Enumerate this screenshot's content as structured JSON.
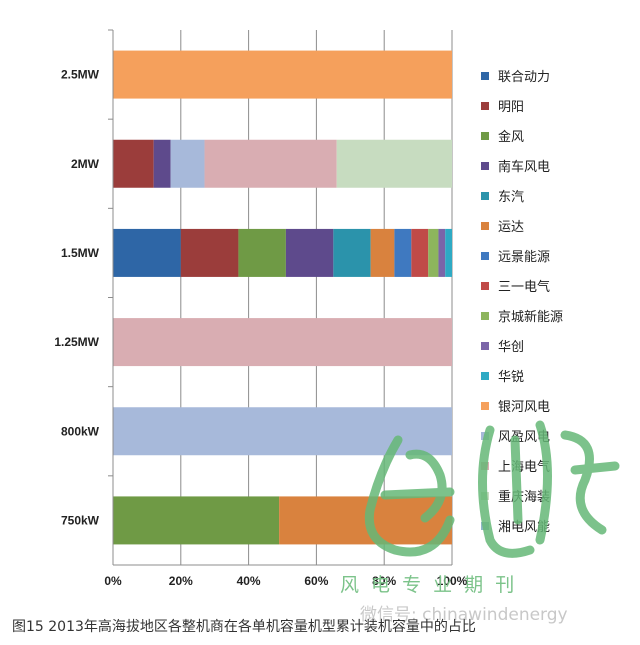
{
  "chart_data": {
    "type": "bar",
    "orientation": "horizontal",
    "stacked": true,
    "percent": true,
    "categories": [
      "2.5MW",
      "2MW",
      "1.5MW",
      "1.25MW",
      "800kW",
      "750kW"
    ],
    "x_ticks": [
      "0%",
      "20%",
      "40%",
      "60%",
      "80%",
      "100%"
    ],
    "xlim": [
      0,
      100
    ],
    "legend_position": "right",
    "series": [
      {
        "name": "联合动力",
        "color": "#2e66a6",
        "values": [
          0,
          0,
          20,
          0,
          0,
          0
        ]
      },
      {
        "name": "明阳",
        "color": "#9b3d3b",
        "values": [
          0,
          12,
          17,
          0,
          0,
          0
        ]
      },
      {
        "name": "金风",
        "color": "#6f9a45",
        "values": [
          0,
          0,
          14,
          0,
          0,
          49
        ]
      },
      {
        "name": "南车风电",
        "color": "#5e4a8c",
        "values": [
          0,
          5,
          14,
          0,
          0,
          0
        ]
      },
      {
        "name": "东汽",
        "color": "#2b93ab",
        "values": [
          0,
          0,
          11,
          0,
          0,
          0
        ]
      },
      {
        "name": "运达",
        "color": "#d9823e",
        "values": [
          0,
          0,
          7,
          0,
          0,
          51
        ]
      },
      {
        "name": "远景能源",
        "color": "#3f79c0",
        "values": [
          0,
          0,
          5,
          0,
          0,
          0
        ]
      },
      {
        "name": "三一电气",
        "color": "#c04a48",
        "values": [
          0,
          0,
          5,
          0,
          0,
          0
        ]
      },
      {
        "name": "京城新能源",
        "color": "#8db55d",
        "values": [
          0,
          0,
          3,
          0,
          0,
          0
        ]
      },
      {
        "name": "华创",
        "color": "#7b65a8",
        "values": [
          0,
          0,
          2,
          0,
          0,
          0
        ]
      },
      {
        "name": "华锐",
        "color": "#2eaac4",
        "values": [
          0,
          0,
          2,
          0,
          0,
          0
        ]
      },
      {
        "name": "银河风电",
        "color": "#f5a05c",
        "values": [
          100,
          0,
          0,
          0,
          0,
          0
        ]
      },
      {
        "name": "风盈风电",
        "color": "#a7b9da",
        "values": [
          0,
          10,
          0,
          0,
          100,
          0
        ]
      },
      {
        "name": "上海电气",
        "color": "#d9adb2",
        "values": [
          0,
          39,
          0,
          100,
          0,
          0
        ]
      },
      {
        "name": "重庆海装",
        "color": "#c7dcc0",
        "values": [
          0,
          34,
          0,
          0,
          0,
          0
        ]
      },
      {
        "name": "湘电风能",
        "color": "#8fb7c8",
        "values": [
          0,
          0,
          0,
          0,
          0,
          0
        ]
      }
    ]
  },
  "caption": "图15 2013年高海拔地区各整机商在各单机容量机型累计装机容量中的占比",
  "watermark": {
    "line1": "风 电 专 业 期 刊",
    "line2": "微信号: chinawindenergy"
  }
}
